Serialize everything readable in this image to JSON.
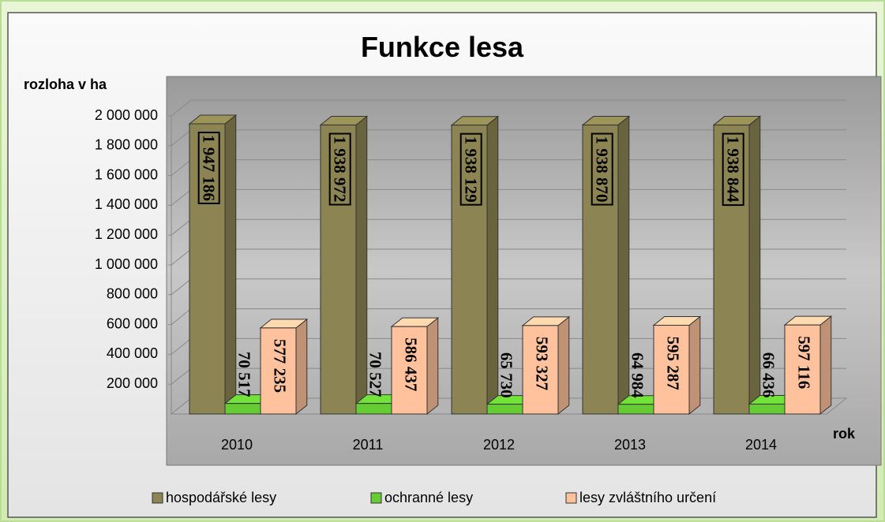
{
  "chart_data": {
    "type": "bar3d",
    "title": "Funkce lesa",
    "y_label": "rozloha v  ha",
    "x_label": "rok",
    "categories": [
      "2010",
      "2011",
      "2012",
      "2013",
      "2014"
    ],
    "series": [
      {
        "name": "hospodářské lesy",
        "color": "#8c8452",
        "values": [
          1947186,
          1938972,
          1938129,
          1938870,
          1938844
        ],
        "value_labels": [
          "1 947 186",
          "1 938 972",
          "1 938 129",
          "1 938 870",
          "1 938 844"
        ]
      },
      {
        "name": "ochranné lesy",
        "color": "#66cc33",
        "values": [
          70517,
          70527,
          65730,
          64984,
          66436
        ],
        "value_labels": [
          "70 517",
          "70 527",
          "65 730",
          "64 984",
          "66 436"
        ]
      },
      {
        "name": "lesy zvláštního určení",
        "color": "#ffc29c",
        "values": [
          577235,
          586437,
          593327,
          595287,
          597116
        ],
        "value_labels": [
          "577 235",
          "586 437",
          "593 327",
          "595 287",
          "597 116"
        ]
      }
    ],
    "ylim": [
      0,
      2000000
    ],
    "yticks": [
      {
        "value": 200000,
        "label": "200 000"
      },
      {
        "value": 400000,
        "label": "400 000"
      },
      {
        "value": 600000,
        "label": "600 000"
      },
      {
        "value": 800000,
        "label": "800 000"
      },
      {
        "value": 1000000,
        "label": "1 000 000"
      },
      {
        "value": 1200000,
        "label": "1 200 000"
      },
      {
        "value": 1400000,
        "label": "1 400 000"
      },
      {
        "value": 1600000,
        "label": "1 600 000"
      },
      {
        "value": 1800000,
        "label": "1 800 000"
      },
      {
        "value": 2000000,
        "label": "2 000 000"
      }
    ],
    "grid": true,
    "legend": "bottom"
  }
}
